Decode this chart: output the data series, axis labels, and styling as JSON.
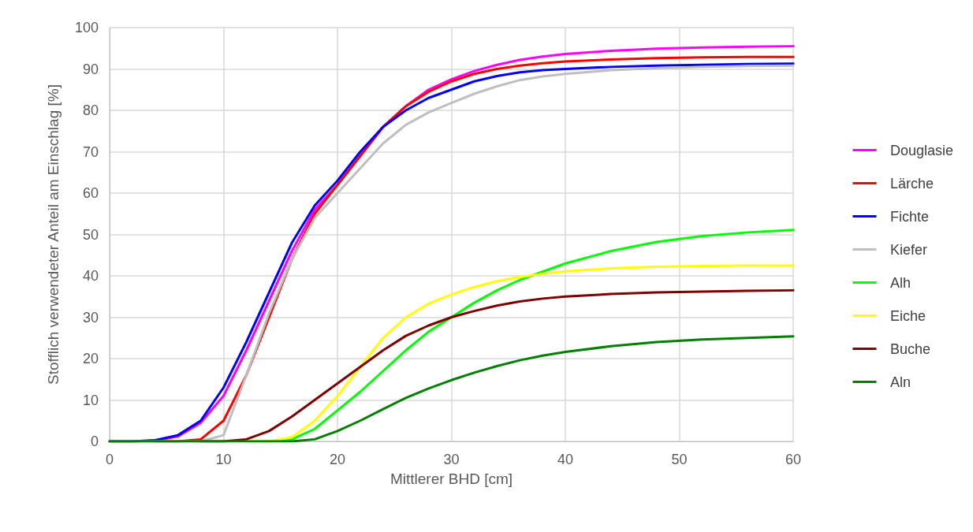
{
  "chart_data": {
    "type": "line",
    "xlabel": "Mittlerer BHD [cm]",
    "ylabel": "Stofflich verwendeter Anteil am Einschlag [%]",
    "x": [
      0,
      2,
      4,
      6,
      8,
      10,
      12,
      14,
      16,
      18,
      20,
      22,
      24,
      26,
      28,
      30,
      32,
      34,
      36,
      38,
      40,
      44,
      48,
      52,
      56,
      60
    ],
    "series": [
      {
        "name": "Douglasie",
        "color": "#ff00ff",
        "values": [
          0,
          0,
          0.2,
          1.2,
          4.5,
          11,
          22,
          34,
          46,
          56,
          62,
          69,
          76,
          81,
          85,
          87.5,
          89.5,
          91,
          92.2,
          93,
          93.6,
          94.4,
          94.9,
          95.2,
          95.4,
          95.5
        ]
      },
      {
        "name": "Lärche",
        "color": "#ff0000",
        "values": [
          null,
          null,
          0,
          0,
          0.5,
          5,
          16,
          30,
          44,
          55,
          62,
          69,
          76,
          81,
          84.5,
          87,
          88.8,
          90,
          90.8,
          91.4,
          91.8,
          92.3,
          92.6,
          92.8,
          92.9,
          92.9
        ]
      },
      {
        "name": "Fichte",
        "color": "#0000ff",
        "values": [
          0,
          0,
          0.3,
          1.5,
          5,
          13,
          24,
          36,
          48,
          57,
          63,
          70,
          76,
          80,
          83,
          85,
          87,
          88.3,
          89.2,
          89.7,
          90,
          90.5,
          90.8,
          91,
          91.2,
          91.3
        ]
      },
      {
        "name": "Kiefer",
        "color": "#bfbfbf",
        "values": [
          0,
          0,
          0,
          0,
          0,
          1.5,
          16,
          31,
          44,
          54,
          60,
          66,
          72,
          76.5,
          79.5,
          81.8,
          84,
          85.8,
          87.3,
          88.2,
          88.8,
          89.7,
          90.2,
          90.5,
          90.7,
          90.8
        ]
      },
      {
        "name": "Alh",
        "color": "#00ff00",
        "values": [
          null,
          null,
          null,
          null,
          null,
          null,
          null,
          0,
          0.5,
          3,
          7.5,
          12,
          17,
          22,
          26.5,
          30,
          33.5,
          36.5,
          39,
          41,
          43,
          46,
          48.2,
          49.6,
          50.5,
          51.1
        ]
      },
      {
        "name": "Eiche",
        "color": "#ffff00",
        "values": [
          null,
          null,
          null,
          null,
          null,
          null,
          0,
          0,
          1,
          5,
          11,
          18,
          25,
          30,
          33.3,
          35.5,
          37.3,
          38.7,
          39.7,
          40.5,
          41.1,
          41.8,
          42.2,
          42.4,
          42.5,
          42.5
        ]
      },
      {
        "name": "Buche",
        "color": "#7f0000",
        "values": [
          null,
          null,
          null,
          null,
          0,
          0,
          0.5,
          2.5,
          6,
          10,
          14,
          18,
          22,
          25.5,
          28,
          30,
          31.5,
          32.8,
          33.8,
          34.5,
          35,
          35.6,
          36,
          36.2,
          36.4,
          36.5
        ]
      },
      {
        "name": "Aln",
        "color": "#008000",
        "values": [
          0,
          0,
          0,
          0,
          0,
          0,
          0,
          0,
          0,
          0.5,
          2.5,
          5,
          7.8,
          10.5,
          12.8,
          14.8,
          16.6,
          18.2,
          19.6,
          20.7,
          21.6,
          23,
          24,
          24.6,
          25,
          25.4
        ]
      }
    ],
    "xlim": [
      0,
      60
    ],
    "xticks": [
      0,
      10,
      20,
      30,
      40,
      50,
      60
    ],
    "ylim": [
      0,
      100
    ],
    "yticks": [
      0,
      10,
      20,
      30,
      40,
      50,
      60,
      70,
      80,
      90,
      100
    ],
    "grid": true,
    "legend": "right",
    "marker": "none",
    "line_style": "solid"
  }
}
